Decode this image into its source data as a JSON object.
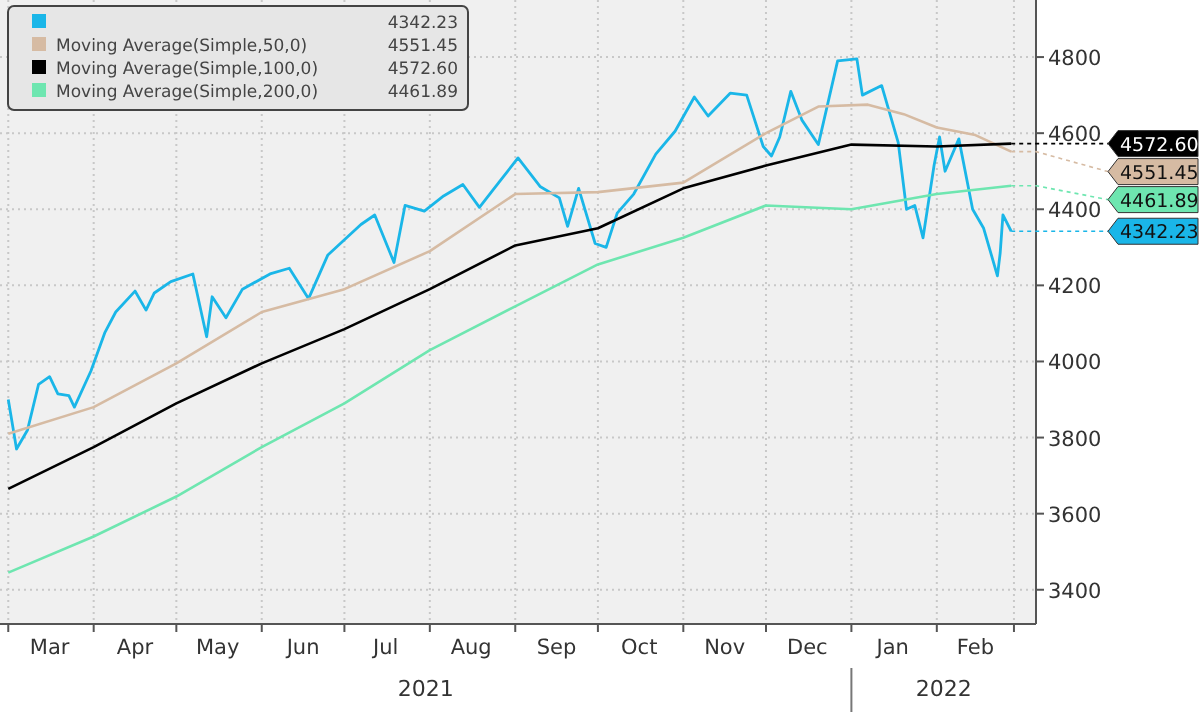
{
  "chart_data": {
    "type": "line",
    "xlim": [
      "2021-02-26",
      "2022-03-09"
    ],
    "ylim": [
      3310,
      4950
    ],
    "yticks": [
      3400,
      3600,
      3800,
      4000,
      4200,
      4400,
      4600,
      4800
    ],
    "xticks": [
      {
        "value": "2021-03-01",
        "label": null
      },
      {
        "value": "2021-03-16",
        "label": "Mar"
      },
      {
        "value": "2021-04-01",
        "label": null
      },
      {
        "value": "2021-04-16",
        "label": "Apr"
      },
      {
        "value": "2021-05-01",
        "label": null
      },
      {
        "value": "2021-05-16",
        "label": "May"
      },
      {
        "value": "2021-06-01",
        "label": null
      },
      {
        "value": "2021-06-16",
        "label": "Jun"
      },
      {
        "value": "2021-07-01",
        "label": null
      },
      {
        "value": "2021-07-16",
        "label": "Jul"
      },
      {
        "value": "2021-08-01",
        "label": null
      },
      {
        "value": "2021-08-16",
        "label": "Aug"
      },
      {
        "value": "2021-09-01",
        "label": null
      },
      {
        "value": "2021-09-16",
        "label": "Sep"
      },
      {
        "value": "2021-10-01",
        "label": null
      },
      {
        "value": "2021-10-16",
        "label": "Oct"
      },
      {
        "value": "2021-11-01",
        "label": null
      },
      {
        "value": "2021-11-16",
        "label": "Nov"
      },
      {
        "value": "2021-12-01",
        "label": null
      },
      {
        "value": "2021-12-16",
        "label": "Dec"
      },
      {
        "value": "2022-01-01",
        "label": null
      },
      {
        "value": "2022-01-16",
        "label": "Jan"
      },
      {
        "value": "2022-02-01",
        "label": null
      },
      {
        "value": "2022-02-15",
        "label": "Feb"
      },
      {
        "value": "2022-03-01",
        "label": null
      }
    ],
    "grid": true,
    "legend": "top left",
    "line_style": "solid",
    "marker": "none",
    "annotations": [
      "4342.23",
      "4551.45",
      "4572.60",
      "4461.89",
      "2021",
      "2022"
    ],
    "series": [
      {
        "color": "#1ab6e8",
        "x": [
          "2021-03-01",
          "2021-03-04",
          "2021-03-08",
          "2021-03-12",
          "2021-03-16",
          "2021-03-19",
          "2021-03-23",
          "2021-03-25",
          "2021-03-31",
          "2021-04-05",
          "2021-04-09",
          "2021-04-16",
          "2021-04-20",
          "2021-04-23",
          "2021-04-29",
          "2021-05-07",
          "2021-05-12",
          "2021-05-14",
          "2021-05-19",
          "2021-05-25",
          "2021-06-04",
          "2021-06-11",
          "2021-06-18",
          "2021-06-25",
          "2021-07-01",
          "2021-07-07",
          "2021-07-12",
          "2021-07-19",
          "2021-07-23",
          "2021-07-30",
          "2021-08-06",
          "2021-08-13",
          "2021-08-19",
          "2021-08-26",
          "2021-09-02",
          "2021-09-10",
          "2021-09-17",
          "2021-09-20",
          "2021-09-24",
          "2021-09-30",
          "2021-10-04",
          "2021-10-08",
          "2021-10-14",
          "2021-10-22",
          "2021-10-29",
          "2021-11-05",
          "2021-11-10",
          "2021-11-18",
          "2021-11-24",
          "2021-11-30",
          "2021-12-03",
          "2021-12-06",
          "2021-12-10",
          "2021-12-14",
          "2021-12-20",
          "2021-12-27",
          "2022-01-03",
          "2022-01-05",
          "2022-01-12",
          "2022-01-18",
          "2022-01-21",
          "2022-01-24",
          "2022-01-27",
          "2022-01-31",
          "2022-02-02",
          "2022-02-04",
          "2022-02-09",
          "2022-02-14",
          "2022-02-18",
          "2022-02-23",
          "2022-02-24",
          "2022-02-25",
          "2022-02-28"
        ],
        "values": [
          3900,
          3770,
          3820,
          3940,
          3960,
          3915,
          3910,
          3880,
          3975,
          4075,
          4130,
          4185,
          4135,
          4180,
          4210,
          4230,
          4065,
          4170,
          4115,
          4190,
          4230,
          4245,
          4165,
          4280,
          4320,
          4360,
          4385,
          4260,
          4410,
          4395,
          4435,
          4465,
          4405,
          4470,
          4535,
          4460,
          4430,
          4355,
          4455,
          4310,
          4300,
          4390,
          4440,
          4545,
          4605,
          4695,
          4645,
          4705,
          4700,
          4565,
          4540,
          4590,
          4710,
          4635,
          4570,
          4790,
          4795,
          4700,
          4725,
          4575,
          4400,
          4410,
          4325,
          4515,
          4590,
          4500,
          4585,
          4400,
          4350,
          4225,
          4285,
          4385,
          4342.23
        ]
      },
      {
        "name": "Moving Average(Simple,50,0)",
        "color": "#d6bba3",
        "x": [
          "2021-03-01",
          "2021-04-01",
          "2021-05-01",
          "2021-06-01",
          "2021-07-01",
          "2021-08-01",
          "2021-09-01",
          "2021-10-01",
          "2021-11-01",
          "2021-12-01",
          "2021-12-20",
          "2022-01-07",
          "2022-01-20",
          "2022-02-01",
          "2022-02-15",
          "2022-02-28"
        ],
        "values": [
          3810,
          3880,
          3995,
          4130,
          4190,
          4290,
          4440,
          4445,
          4470,
          4600,
          4670,
          4675,
          4650,
          4615,
          4595,
          4551.45
        ]
      },
      {
        "name": "Moving Average(Simple,100,0)",
        "color": "#000000",
        "x": [
          "2021-03-01",
          "2021-04-01",
          "2021-05-01",
          "2021-06-01",
          "2021-07-01",
          "2021-08-01",
          "2021-09-01",
          "2021-10-01",
          "2021-11-01",
          "2021-12-01",
          "2022-01-01",
          "2022-02-01",
          "2022-02-28"
        ],
        "values": [
          3665,
          3775,
          3890,
          3995,
          4085,
          4190,
          4305,
          4350,
          4455,
          4515,
          4570,
          4565,
          4572.6
        ]
      },
      {
        "name": "Moving Average(Simple,200,0)",
        "color": "#6ee6b0",
        "x": [
          "2021-03-01",
          "2021-04-01",
          "2021-05-01",
          "2021-06-01",
          "2021-07-01",
          "2021-08-01",
          "2021-09-01",
          "2021-10-01",
          "2021-11-01",
          "2021-12-01",
          "2022-01-01",
          "2022-02-01",
          "2022-02-28"
        ],
        "values": [
          3445,
          3540,
          3645,
          3775,
          3890,
          4030,
          4145,
          4255,
          4325,
          4410,
          4400,
          4440,
          4461.89
        ]
      }
    ]
  }
}
